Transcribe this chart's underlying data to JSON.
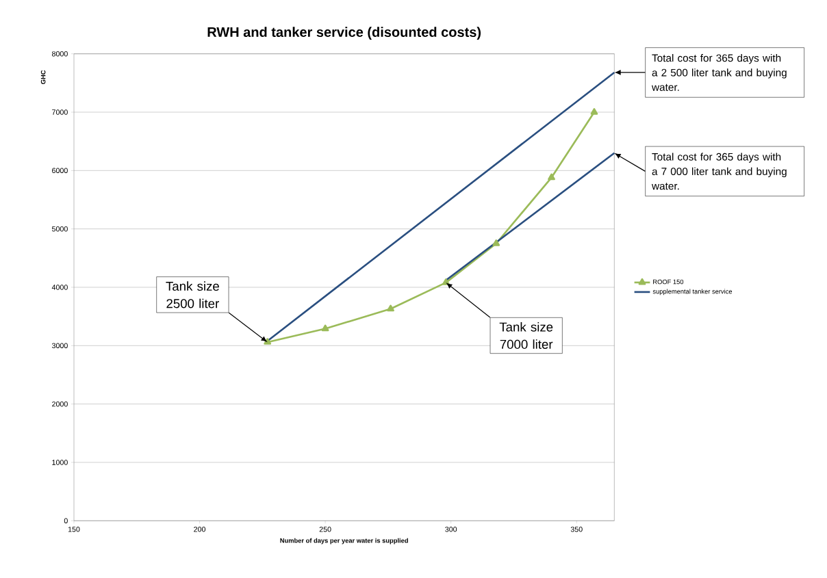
{
  "chart_data": {
    "type": "line",
    "title": "RWH and tanker service (disounted costs)",
    "xlabel": "Number of days per year water is supplied",
    "ylabel": "GHC",
    "xlim": [
      150,
      365
    ],
    "ylim": [
      0,
      8000
    ],
    "xticks": [
      150,
      200,
      250,
      300,
      350
    ],
    "yticks": [
      0,
      1000,
      2000,
      3000,
      4000,
      5000,
      6000,
      7000,
      8000
    ],
    "grid": "y",
    "legend": "right",
    "series": [
      {
        "name": "ROOF 150",
        "color": "#9bbb59",
        "marker": "triangle",
        "x": [
          227,
          250,
          276,
          298,
          318,
          340,
          357
        ],
        "values": [
          3060,
          3290,
          3630,
          4080,
          4750,
          5880,
          7000
        ]
      },
      {
        "name": "supplemental tanker service",
        "color": "#2a4f80",
        "marker": "none",
        "x": [
          227,
          365,
          300,
          298,
          365
        ],
        "values": [
          3080,
          7680,
          null,
          4120,
          6300
        ]
      }
    ],
    "annotations": [
      {
        "text": "Tank size 2500 liter",
        "x": 227,
        "y": 3060
      },
      {
        "text": "Tank size 7000 liter",
        "x": 298,
        "y": 4080
      },
      {
        "text": "Total cost for 365 days with a 2 500 liter tank and buying water.",
        "x": 365,
        "y": 7680
      },
      {
        "text": "Total cost for 365 days with a 7 000 liter tank and buying water.",
        "x": 365,
        "y": 6300
      }
    ]
  }
}
